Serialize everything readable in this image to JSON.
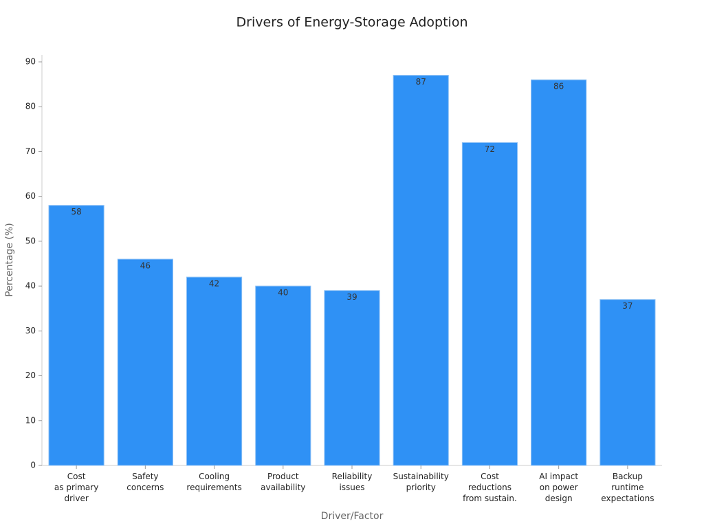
{
  "chart_data": {
    "type": "bar",
    "title": "Drivers of Energy-Storage Adoption",
    "x_label": "Driver/Factor",
    "y_label": "Percentage (%)",
    "categories": [
      "Cost\nas primary\ndriver",
      "Safety\nconcerns",
      "Cooling\nrequirements",
      "Product\navailability",
      "Reliability\nissues",
      "Sustainability\npriority",
      "Cost\nreductions\nfrom sustain.",
      "AI impact\non power\ndesign",
      "Backup\nruntime\nexpectations"
    ],
    "values": [
      58,
      46,
      42,
      40,
      39,
      87,
      72,
      86,
      37
    ],
    "color": "#2f91f5",
    "ylim": [
      0,
      90
    ],
    "yticks": [
      0,
      10,
      20,
      30,
      40,
      50,
      60,
      70,
      80,
      90
    ],
    "grid": false
  }
}
